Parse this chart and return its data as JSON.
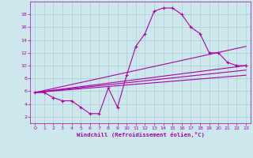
{
  "xlabel": "Windchill (Refroidissement éolien,°C)",
  "bg_color": "#cce8ec",
  "grid_color": "#aacccc",
  "line_color": "#aa00aa",
  "xlim": [
    -0.5,
    23.5
  ],
  "ylim": [
    1.0,
    20.0
  ],
  "yticks": [
    2,
    4,
    6,
    8,
    10,
    12,
    14,
    16,
    18
  ],
  "xticks": [
    0,
    1,
    2,
    3,
    4,
    5,
    6,
    7,
    8,
    9,
    10,
    11,
    12,
    13,
    14,
    15,
    16,
    17,
    18,
    19,
    20,
    21,
    22,
    23
  ],
  "curve1_x": [
    0,
    1,
    2,
    3,
    4,
    5,
    6,
    7,
    8,
    9,
    10,
    11,
    12,
    13,
    14,
    15,
    16,
    17,
    18,
    19,
    20,
    21,
    22,
    23
  ],
  "curve1_y": [
    5.8,
    5.8,
    5.0,
    4.5,
    4.5,
    3.5,
    2.5,
    2.5,
    6.5,
    3.5,
    8.5,
    13.0,
    15.0,
    18.5,
    19.0,
    19.0,
    18.0,
    16.0,
    15.0,
    12.0,
    12.0,
    10.5,
    10.0,
    10.0
  ],
  "curve2_x": [
    0,
    23
  ],
  "curve2_y": [
    5.8,
    10.0
  ],
  "curve3_x": [
    0,
    23
  ],
  "curve3_y": [
    5.8,
    9.3
  ],
  "curve4_x": [
    0,
    23
  ],
  "curve4_y": [
    5.8,
    13.0
  ],
  "curve5_x": [
    0,
    23
  ],
  "curve5_y": [
    5.8,
    8.5
  ]
}
